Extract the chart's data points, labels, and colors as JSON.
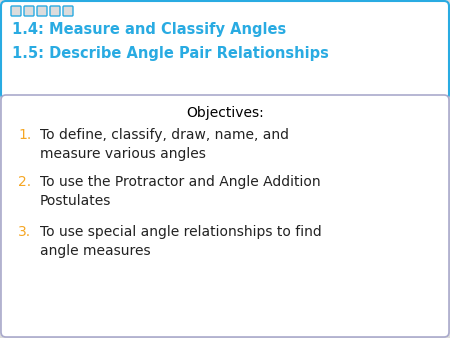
{
  "title_line1": "1.4: Measure and Classify Angles",
  "title_line2": "1.5: Describe Angle Pair Relationships",
  "title_color": "#29ABE2",
  "title_box_bg": "#FFFFFF",
  "title_box_edge": "#29ABE2",
  "objectives_title": "Objectives:",
  "objectives_title_color": "#000000",
  "items": [
    "To define, classify, draw, name, and\nmeasure various angles",
    "To use the Protractor and Angle Addition\nPostulates",
    "To use special angle relationships to find\nangle measures"
  ],
  "number_color": "#F5A623",
  "item_text_color": "#222222",
  "body_box_bg": "#FFFFFF",
  "body_box_edge": "#AAAACC",
  "bg_color": "#DCDCDC",
  "title_font_size": 10.5,
  "obj_font_size": 10.0,
  "item_font_size": 10.0,
  "circle_color": "#CCCCCC",
  "circle_edge": "#29ABE2"
}
